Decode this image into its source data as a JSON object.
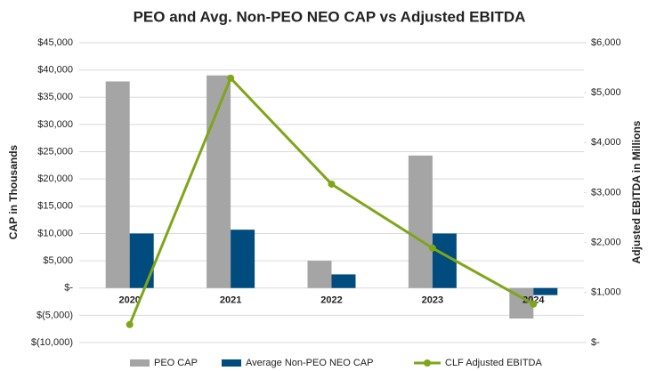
{
  "chart_data": {
    "type": "bar_line",
    "title": "PEO and Avg. Non-PEO NEO CAP vs Adjusted EBITDA",
    "y_label": "CAP in Thousands",
    "y2_label": "Adjusted EBITDA in Millions",
    "categories": [
      "2020",
      "2021",
      "2022",
      "2023",
      "2024"
    ],
    "series": [
      {
        "name": "PEO CAP",
        "color": "#a5a5a5",
        "type": "bar",
        "values": [
          37900,
          39000,
          5000,
          24300,
          -5600
        ]
      },
      {
        "name": "Average Non-PEO NEO CAP",
        "color": "#004c7f",
        "type": "bar",
        "values": [
          10000,
          10700,
          2500,
          10000,
          -1300
        ]
      },
      {
        "name": "CLF Adjusted EBITDA",
        "color": "#7fa51a",
        "type": "line",
        "axis": "y2",
        "values": [
          360,
          5290,
          3170,
          1890,
          770
        ]
      }
    ],
    "ylim": [
      -10000,
      45000
    ],
    "yticks": [
      {
        "value": -10000,
        "label": "$(10,000)"
      },
      {
        "value": -5000,
        "label": "$(5,000)"
      },
      {
        "value": 0,
        "label": "$-"
      },
      {
        "value": 5000,
        "label": "$5,000"
      },
      {
        "value": 10000,
        "label": "$10,000"
      },
      {
        "value": 15000,
        "label": "$15,000"
      },
      {
        "value": 20000,
        "label": "$20,000"
      },
      {
        "value": 25000,
        "label": "$25,000"
      },
      {
        "value": 30000,
        "label": "$30,000"
      },
      {
        "value": 35000,
        "label": "$35,000"
      },
      {
        "value": 40000,
        "label": "$40,000"
      },
      {
        "value": 45000,
        "label": "$45,000"
      }
    ],
    "y2lim": [
      0,
      6000
    ],
    "y2ticks": [
      {
        "value": 0,
        "label": "$-"
      },
      {
        "value": 1000,
        "label": "$1,000"
      },
      {
        "value": 2000,
        "label": "$2,000"
      },
      {
        "value": 3000,
        "label": "$3,000"
      },
      {
        "value": 4000,
        "label": "$4,000"
      },
      {
        "value": 5000,
        "label": "$5,000"
      },
      {
        "value": 6000,
        "label": "$6,000"
      }
    ],
    "grid": true,
    "legend": "bottom"
  }
}
